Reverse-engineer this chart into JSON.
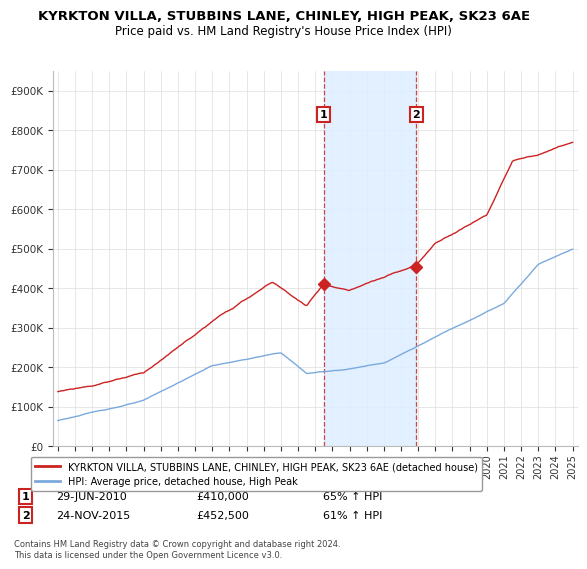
{
  "title": "KYRKTON VILLA, STUBBINS LANE, CHINLEY, HIGH PEAK, SK23 6AE",
  "subtitle": "Price paid vs. HM Land Registry's House Price Index (HPI)",
  "ylim": [
    0,
    950000
  ],
  "yticks": [
    0,
    100000,
    200000,
    300000,
    400000,
    500000,
    600000,
    700000,
    800000,
    900000
  ],
  "ytick_labels": [
    "£0",
    "£100K",
    "£200K",
    "£300K",
    "£400K",
    "£500K",
    "£600K",
    "£700K",
    "£800K",
    "£900K"
  ],
  "hpi_color": "#7aaadd",
  "price_color": "#cc2222",
  "purchase1_x": 2010.49,
  "purchase1_y": 410000,
  "purchase2_x": 2015.9,
  "purchase2_y": 452500,
  "shade_color": "#ddeeff",
  "vline_color": "#cc3333",
  "legend_price_label": "KYRKTON VILLA, STUBBINS LANE, CHINLEY, HIGH PEAK, SK23 6AE (detached house)",
  "legend_hpi_label": "HPI: Average price, detached house, High Peak",
  "footer": "Contains HM Land Registry data © Crown copyright and database right 2024.\nThis data is licensed under the Open Government Licence v3.0.",
  "title_fontsize": 9.5,
  "subtitle_fontsize": 8.5,
  "background_color": "#ffffff",
  "xmin": 1995.0,
  "xmax": 2025.3
}
